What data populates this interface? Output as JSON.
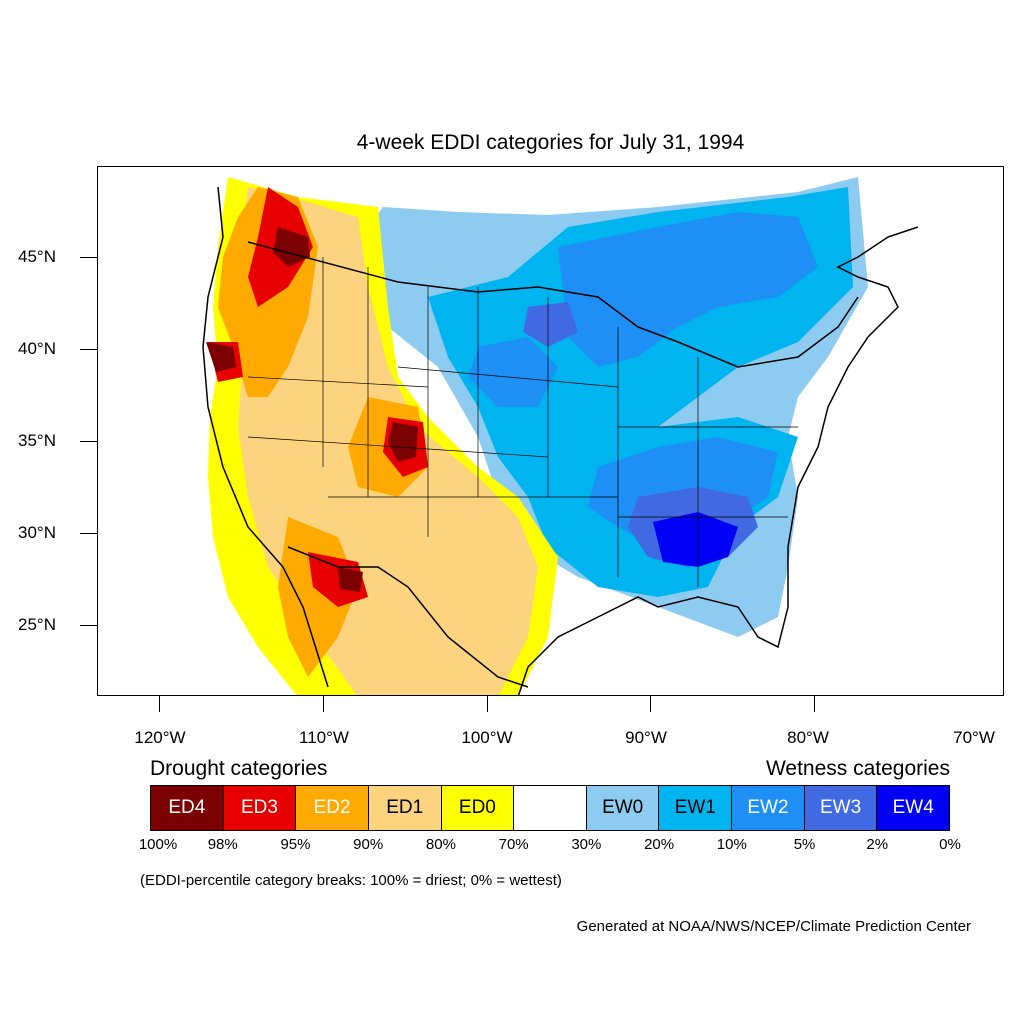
{
  "title": "4-week EDDI categories for July 31, 1994",
  "y_axis_labels": [
    "45°N",
    "40°N",
    "35°N",
    "30°N",
    "25°N"
  ],
  "x_axis_labels": [
    "120°W",
    "110°W",
    "100°W",
    "90°W",
    "80°W",
    "70°W"
  ],
  "legend": {
    "drought_title": "Drought categories",
    "wetness_title": "Wetness categories",
    "categories": [
      {
        "label": "ED4",
        "color": "#7b0000",
        "text_color": "#ffffff"
      },
      {
        "label": "ED3",
        "color": "#e60000",
        "text_color": "#ffffff"
      },
      {
        "label": "ED2",
        "color": "#ffaa00",
        "text_color": "#ffffff"
      },
      {
        "label": "ED1",
        "color": "#fcd37f",
        "text_color": "#000000"
      },
      {
        "label": "ED0",
        "color": "#ffff00",
        "text_color": "#000000"
      },
      {
        "label": "",
        "color": "#ffffff",
        "text_color": "#000000"
      },
      {
        "label": "EW0",
        "color": "#8ecbf0",
        "text_color": "#000000"
      },
      {
        "label": "EW1",
        "color": "#00b4f0",
        "text_color": "#000000"
      },
      {
        "label": "EW2",
        "color": "#1e8ff5",
        "text_color": "#ffffff"
      },
      {
        "label": "EW3",
        "color": "#4169e1",
        "text_color": "#ffffff"
      },
      {
        "label": "EW4",
        "color": "#0000f5",
        "text_color": "#ffffff"
      }
    ],
    "breaks": [
      "100%",
      "98%",
      "95%",
      "90%",
      "80%",
      "70%",
      "30%",
      "20%",
      "10%",
      "5%",
      "2%",
      "0%"
    ]
  },
  "note": "(EDDI-percentile category breaks: 100% = driest; 0% = wettest)",
  "credit": "Generated at NOAA/NWS/NCEP/Climate Prediction Center"
}
